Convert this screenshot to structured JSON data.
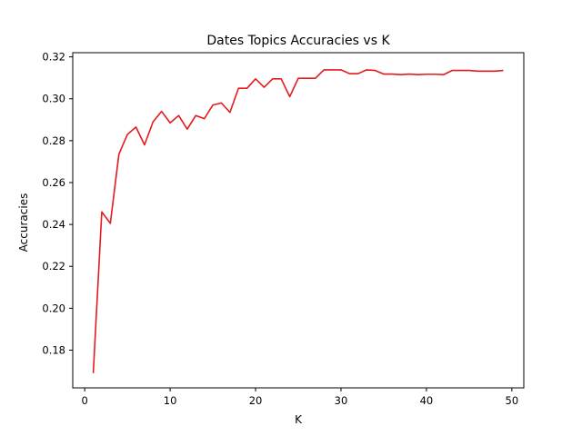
{
  "chart_data": {
    "type": "line",
    "title": "Dates Topics Accuracies vs K",
    "xlabel": "K",
    "ylabel": "Accuracies",
    "xlim": [
      -1.4,
      51.4
    ],
    "ylim": [
      0.162,
      0.322
    ],
    "xticks": [
      0,
      10,
      20,
      30,
      40,
      50
    ],
    "yticks": [
      0.18,
      0.2,
      0.22,
      0.24,
      0.26,
      0.28,
      0.3,
      0.32
    ],
    "grid": false,
    "series": [
      {
        "color": "#e41a1c",
        "x": [
          1,
          2,
          3,
          4,
          5,
          6,
          7,
          8,
          9,
          10,
          11,
          12,
          13,
          14,
          15,
          16,
          17,
          18,
          19,
          20,
          21,
          22,
          23,
          24,
          25,
          26,
          27,
          28,
          29,
          30,
          31,
          32,
          33,
          34,
          35,
          36,
          37,
          38,
          39,
          40,
          41,
          42,
          43,
          44,
          45,
          46,
          47,
          48,
          49
        ],
        "y": [
          0.169,
          0.246,
          0.2405,
          0.2735,
          0.283,
          0.2865,
          0.278,
          0.289,
          0.294,
          0.2885,
          0.292,
          0.2855,
          0.292,
          0.2905,
          0.297,
          0.298,
          0.2935,
          0.305,
          0.305,
          0.3095,
          0.3055,
          0.3095,
          0.3095,
          0.301,
          0.3098,
          0.3098,
          0.3098,
          0.3138,
          0.3138,
          0.3138,
          0.312,
          0.312,
          0.3138,
          0.3135,
          0.3118,
          0.3118,
          0.3115,
          0.3118,
          0.3115,
          0.3117,
          0.3117,
          0.3115,
          0.3135,
          0.3135,
          0.3135,
          0.3132,
          0.3132,
          0.3132,
          0.3135
        ]
      }
    ]
  }
}
